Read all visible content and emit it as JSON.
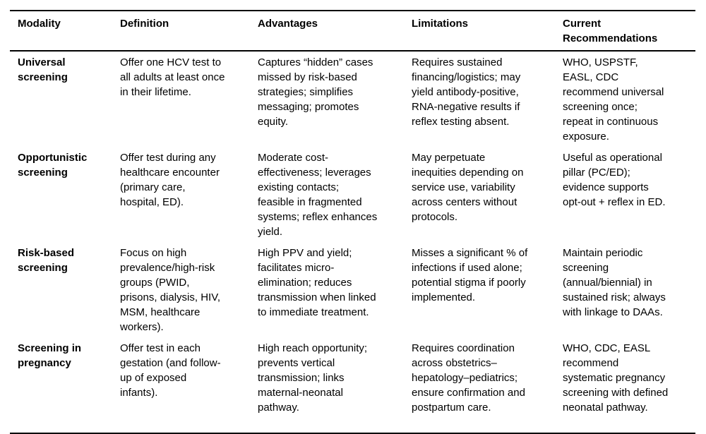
{
  "table": {
    "columns": [
      "Modality",
      "Definition",
      "Advantages",
      "Limitations",
      "Current Recommendations"
    ],
    "rows": [
      {
        "modality": "Universal screening",
        "definition": "Offer one HCV test to all adults at least once in their lifetime.",
        "advantages": "Captures “hidden” cases missed by risk-based strategies; simplifies messaging; promotes equity.",
        "limitations": "Requires sustained financing/logistics; may yield antibody-positive, RNA-negative results if reflex testing absent.",
        "recommendations": "WHO, USPSTF, EASL, CDC recommend universal screening once; repeat in continuous exposure."
      },
      {
        "modality": "Opportunistic screening",
        "definition": "Offer test during any healthcare encounter (primary care, hospital, ED).",
        "advantages": "Moderate cost-effectiveness; leverages existing contacts; feasible in fragmented systems; reflex enhances yield.",
        "limitations": "May perpetuate inequities depending on service use, variability across centers without protocols.",
        "recommendations": "Useful as operational pillar (PC/ED); evidence supports opt-out + reflex in ED."
      },
      {
        "modality": "Risk-based screening",
        "definition": "Focus on high prevalence/high-risk groups (PWID, prisons, dialysis, HIV, MSM, healthcare workers).",
        "advantages": "High PPV and yield; facilitates micro-elimination; reduces transmission when linked to immediate treatment.",
        "limitations": "Misses a significant % of infections if used alone; potential stigma if poorly implemented.",
        "recommendations": "Maintain periodic screening (annual/biennial) in sustained risk; always with linkage to DAAs."
      },
      {
        "modality": "Screening in pregnancy",
        "definition": "Offer test in each gestation (and follow-up of exposed infants).",
        "advantages": "High reach opportunity; prevents vertical transmission; links maternal-neonatal pathway.",
        "limitations": "Requires coordination across obstetrics–hepatology–pediatrics; ensure confirmation and postpartum care.",
        "recommendations": "WHO, CDC, EASL recommend systematic pregnancy screening with defined neonatal pathway."
      }
    ]
  }
}
